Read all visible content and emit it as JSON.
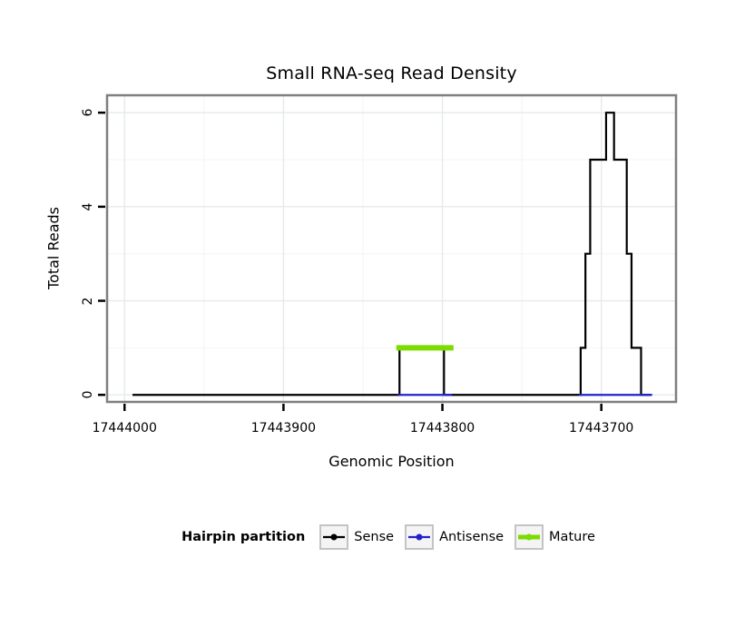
{
  "title": "Small RNA-seq Read Density",
  "axes": {
    "x": {
      "label": "Genomic Position",
      "ticks": [
        "17444000",
        "17443900",
        "17443800",
        "17443700"
      ],
      "tick_values": [
        17444000,
        17443900,
        17443800,
        17443700
      ],
      "reversed": true
    },
    "y": {
      "label": "Total Reads",
      "ticks": [
        "0",
        "2",
        "4",
        "6"
      ],
      "tick_values": [
        0,
        2,
        4,
        6
      ]
    }
  },
  "grid": {
    "x_major": [
      17444000,
      17443900,
      17443800,
      17443700
    ],
    "x_minor": [
      17443950,
      17443850,
      17443750
    ],
    "y_major": [
      0,
      2,
      4,
      6
    ],
    "y_minor": [
      1,
      3,
      5
    ]
  },
  "colors": {
    "grid_major": "#e6e9eb",
    "grid_minor": "#f2f4f5",
    "panel_border": "#7f7f7f",
    "tick": "#000000",
    "sense": "#000000",
    "antisense": "#2222cc",
    "mature": "#7cdb00"
  },
  "legend": {
    "title": "Hairpin partition",
    "items": [
      {
        "label": "Sense",
        "color": "#000000",
        "line_width": 2.2
      },
      {
        "label": "Antisense",
        "color": "#2222cc",
        "line_width": 2.2
      },
      {
        "label": "Mature",
        "color": "#7cdb00",
        "line_width": 5
      }
    ]
  },
  "chart_data": {
    "type": "line",
    "title": "Small RNA-seq Read Density",
    "xlabel": "Genomic Position",
    "ylabel": "Total Reads",
    "x_reversed": true,
    "xlim": [
      17444011,
      17443653
    ],
    "ylim": [
      -0.15,
      6.37
    ],
    "x_ticks": [
      17444000,
      17443900,
      17443800,
      17443700
    ],
    "y_ticks": [
      0,
      2,
      4,
      6
    ],
    "grid": true,
    "legend_position": "bottom",
    "series": [
      {
        "name": "Sense",
        "color": "#000000",
        "width": 2.2,
        "segments": [
          [
            [
              17443995,
              0
            ],
            [
              17443827,
              0
            ],
            [
              17443827,
              1
            ],
            [
              17443799,
              1
            ],
            [
              17443799,
              0
            ],
            [
              17443713,
              0
            ],
            [
              17443713,
              1
            ],
            [
              17443710,
              1
            ],
            [
              17443710,
              3
            ],
            [
              17443707,
              3
            ],
            [
              17443707,
              5
            ],
            [
              17443697,
              5
            ],
            [
              17443697,
              6
            ],
            [
              17443692,
              6
            ],
            [
              17443692,
              5
            ],
            [
              17443684,
              5
            ],
            [
              17443684,
              3
            ],
            [
              17443681,
              3
            ],
            [
              17443681,
              1
            ],
            [
              17443675,
              1
            ],
            [
              17443675,
              0
            ],
            [
              17443669,
              0
            ]
          ]
        ]
      },
      {
        "name": "Antisense",
        "color": "#2222cc",
        "width": 2.2,
        "segments": [
          [
            [
              17443828,
              0
            ],
            [
              17443794,
              0
            ]
          ],
          [
            [
              17443714,
              0
            ],
            [
              17443668,
              0
            ]
          ]
        ]
      },
      {
        "name": "Mature",
        "color": "#7cdb00",
        "width": 6,
        "segments": [
          [
            [
              17443829,
              1
            ],
            [
              17443793,
              1
            ]
          ]
        ]
      }
    ]
  }
}
